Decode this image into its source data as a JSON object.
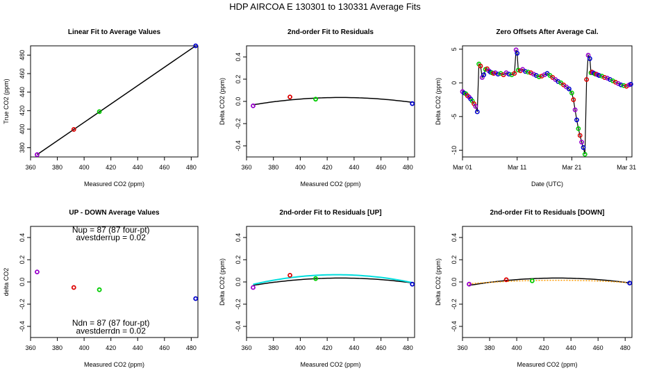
{
  "figure": {
    "title": "HDP   AIRCOA E   130301 to 130331   Average Fits"
  },
  "chart_data": [
    {
      "id": "p1",
      "type": "scatter",
      "title": "Linear Fit to Average Values",
      "xlabel": "Measured CO2 (ppm)",
      "ylabel": "True CO2 (ppm)",
      "xlim": [
        360,
        485
      ],
      "ylim": [
        370,
        490
      ],
      "xticks": [
        360,
        380,
        400,
        420,
        440,
        460,
        480
      ],
      "yticks": [
        380,
        400,
        420,
        440,
        460,
        480
      ],
      "points": [
        {
          "x": 364.9,
          "y": 372.5,
          "color": "#9900cc"
        },
        {
          "x": 392.3,
          "y": 399.7,
          "color": "#dd0000"
        },
        {
          "x": 411.4,
          "y": 418.9,
          "color": "#00cc00"
        },
        {
          "x": 483.3,
          "y": 490.0,
          "color": "#0000cc"
        }
      ],
      "lines": [
        {
          "x": [
            364.9,
            483.3
          ],
          "y": [
            372.5,
            490.0
          ],
          "color": "#000000",
          "width": 1.5
        }
      ]
    },
    {
      "id": "p2",
      "type": "scatter",
      "title": "2nd-order Fit to Residuals",
      "xlabel": "Measured CO2 (ppm)",
      "ylabel": "Delta CO2 (ppm)",
      "xlim": [
        360,
        485
      ],
      "ylim": [
        -0.5,
        0.5
      ],
      "xticks": [
        360,
        380,
        400,
        420,
        440,
        460,
        480
      ],
      "yticks": [
        -0.4,
        -0.2,
        0.0,
        0.2,
        0.4
      ],
      "ytick_labels": [
        "-0.4",
        "-0.2",
        "0.0",
        "0.2",
        "0.4"
      ],
      "points": [
        {
          "x": 364.9,
          "y": -0.04,
          "color": "#9900cc"
        },
        {
          "x": 392.3,
          "y": 0.04,
          "color": "#dd0000"
        },
        {
          "x": 411.4,
          "y": 0.02,
          "color": "#00cc00"
        },
        {
          "x": 483.3,
          "y": -0.02,
          "color": "#0000cc"
        }
      ],
      "curves": [
        {
          "vertex_x": 430,
          "vertex_y": 0.035,
          "a": -1.55e-05,
          "x_range": [
            364.9,
            483.3
          ],
          "color": "#000000",
          "width": 1.5
        }
      ]
    },
    {
      "id": "p3",
      "type": "scatter",
      "title": "Zero Offsets After Average Cal.",
      "xlabel": "Date (UTC)",
      "ylabel": "Delta CO2 (ppm)",
      "xlim": [
        0,
        31
      ],
      "ylim": [
        -11,
        5.5
      ],
      "xticks": [
        0,
        10,
        20,
        30
      ],
      "xtick_labels": [
        "Mar 01",
        "Mar 11",
        "Mar 21",
        "Mar 31"
      ],
      "yticks": [
        -10,
        -5,
        0,
        5
      ],
      "ytick_labels": [
        "-10",
        "-5",
        "0",
        "5"
      ],
      "timeseries": {
        "x": [
          0.0,
          0.3,
          0.6,
          0.9,
          1.2,
          1.5,
          1.8,
          2.1,
          2.4,
          2.7,
          3.0,
          3.3,
          3.6,
          3.9,
          4.2,
          4.5,
          4.8,
          5.1,
          5.4,
          5.7,
          6.0,
          6.5,
          7.0,
          7.5,
          8.0,
          8.5,
          9.0,
          9.5,
          9.8,
          10.0,
          10.2,
          10.6,
          11.0,
          11.5,
          12.0,
          12.5,
          13.0,
          13.5,
          14.0,
          14.5,
          15.0,
          15.5,
          16.0,
          16.5,
          17.0,
          17.5,
          18.0,
          18.5,
          19.0,
          19.5,
          20.0,
          20.3,
          20.6,
          20.9,
          21.2,
          21.5,
          21.8,
          22.1,
          22.4,
          22.7,
          23.0,
          23.3,
          23.5,
          23.7,
          23.9,
          24.1,
          24.3,
          24.5,
          24.7,
          25.0,
          25.5,
          26.0,
          26.5,
          27.0,
          27.5,
          28.0,
          28.5,
          29.0,
          29.5,
          30.0,
          30.5,
          30.8
        ],
        "y": [
          -1.3,
          -1.5,
          -1.6,
          -1.9,
          -2.1,
          -2.4,
          -2.7,
          -3.1,
          -3.5,
          -4.3,
          2.8,
          2.5,
          0.8,
          1.2,
          2.0,
          2.1,
          1.8,
          1.6,
          1.5,
          1.4,
          1.5,
          1.3,
          1.4,
          1.2,
          1.5,
          1.3,
          1.2,
          1.4,
          4.9,
          4.4,
          1.9,
          1.8,
          2.0,
          1.7,
          1.6,
          1.5,
          1.3,
          1.1,
          0.9,
          1.0,
          1.2,
          1.4,
          1.1,
          0.8,
          0.5,
          0.2,
          0.0,
          -0.3,
          -0.6,
          -0.9,
          -1.5,
          -2.5,
          -4.0,
          -5.5,
          -6.8,
          -7.8,
          -8.8,
          -9.6,
          -10.6,
          0.5,
          4.1,
          3.6,
          1.5,
          1.6,
          1.5,
          1.4,
          1.3,
          1.3,
          1.2,
          1.1,
          1.0,
          0.8,
          0.7,
          0.5,
          0.3,
          0.1,
          -0.1,
          -0.3,
          -0.4,
          -0.5,
          -0.3,
          -0.2
        ],
        "colors": [
          "#9900cc",
          "#0000cc",
          "#00cc00",
          "#dd0000"
        ]
      }
    },
    {
      "id": "p4",
      "type": "scatter",
      "title": "UP - DOWN Average Values",
      "xlabel": "Measured CO2 (ppm)",
      "ylabel": "delta CO2",
      "xlim": [
        360,
        485
      ],
      "ylim": [
        -0.5,
        0.5
      ],
      "xticks": [
        360,
        380,
        400,
        420,
        440,
        460,
        480
      ],
      "yticks": [
        -0.4,
        -0.2,
        0.0,
        0.2,
        0.4
      ],
      "ytick_labels": [
        "-0.4",
        "-0.2",
        "0.0",
        "0.2",
        "0.4"
      ],
      "points": [
        {
          "x": 364.9,
          "y": 0.09,
          "color": "#9900cc"
        },
        {
          "x": 392.3,
          "y": -0.05,
          "color": "#dd0000"
        },
        {
          "x": 411.4,
          "y": -0.07,
          "color": "#00cc00"
        },
        {
          "x": 483.3,
          "y": -0.15,
          "color": "#0000cc"
        }
      ],
      "annotations": [
        {
          "text": "Nup = 87 (87 four-pt)",
          "x": 420,
          "y": 0.47
        },
        {
          "text": "avestderrup =  0.02",
          "x": 420,
          "y": 0.4
        },
        {
          "text": "Ndn = 87 (87 four-pt)",
          "x": 420,
          "y": -0.37
        },
        {
          "text": "avestderrdn =  0.02",
          "x": 420,
          "y": -0.44
        }
      ]
    },
    {
      "id": "p5",
      "type": "scatter",
      "title": "2nd-order Fit to Residuals [UP]",
      "xlabel": "Measured CO2 (ppm)",
      "ylabel": "Delta CO2 (ppm)",
      "xlim": [
        360,
        485
      ],
      "ylim": [
        -0.5,
        0.5
      ],
      "xticks": [
        360,
        380,
        400,
        420,
        440,
        460,
        480
      ],
      "yticks": [
        -0.4,
        -0.2,
        0.0,
        0.2,
        0.4
      ],
      "ytick_labels": [
        "-0.4",
        "-0.2",
        "0.0",
        "0.2",
        "0.4"
      ],
      "points": [
        {
          "x": 364.9,
          "y": -0.05,
          "color": "#9900cc"
        },
        {
          "x": 392.3,
          "y": 0.06,
          "color": "#dd0000"
        },
        {
          "x": 411.4,
          "y": 0.03,
          "color": "#00cc00"
        },
        {
          "x": 483.3,
          "y": -0.02,
          "color": "#0000cc"
        }
      ],
      "curves": [
        {
          "vertex_x": 430,
          "vertex_y": 0.035,
          "a": -1.55e-05,
          "x_range": [
            364.9,
            483.3
          ],
          "color": "#000000",
          "width": 1.5
        },
        {
          "vertex_x": 427,
          "vertex_y": 0.065,
          "a": -2.25e-05,
          "x_range": [
            364.9,
            483.3
          ],
          "color": "#00dddd",
          "width": 2
        }
      ]
    },
    {
      "id": "p6",
      "type": "scatter",
      "title": "2nd-order Fit to Residuals [DOWN]",
      "xlabel": "Measured CO2 (ppm)",
      "ylabel": "Delta CO2 (ppm)",
      "xlim": [
        360,
        485
      ],
      "ylim": [
        -0.5,
        0.5
      ],
      "xticks": [
        360,
        380,
        400,
        420,
        440,
        460,
        480
      ],
      "yticks": [
        -0.4,
        -0.2,
        0.0,
        0.2,
        0.4
      ],
      "ytick_labels": [
        "-0.4",
        "-0.2",
        "0.0",
        "0.2",
        "0.4"
      ],
      "points": [
        {
          "x": 364.9,
          "y": -0.02,
          "color": "#9900cc"
        },
        {
          "x": 392.3,
          "y": 0.02,
          "color": "#dd0000"
        },
        {
          "x": 411.4,
          "y": 0.01,
          "color": "#00cc00"
        },
        {
          "x": 483.3,
          "y": -0.01,
          "color": "#0000cc"
        }
      ],
      "curves": [
        {
          "vertex_x": 430,
          "vertex_y": 0.035,
          "a": -1.55e-05,
          "x_range": [
            364.9,
            483.3
          ],
          "color": "#000000",
          "width": 1.5
        },
        {
          "vertex_x": 430,
          "vertex_y": 0.015,
          "a": -7.5e-06,
          "x_range": [
            364.9,
            483.3
          ],
          "color": "#ff9900",
          "width": 1.5,
          "dash": "2,2"
        }
      ]
    }
  ]
}
